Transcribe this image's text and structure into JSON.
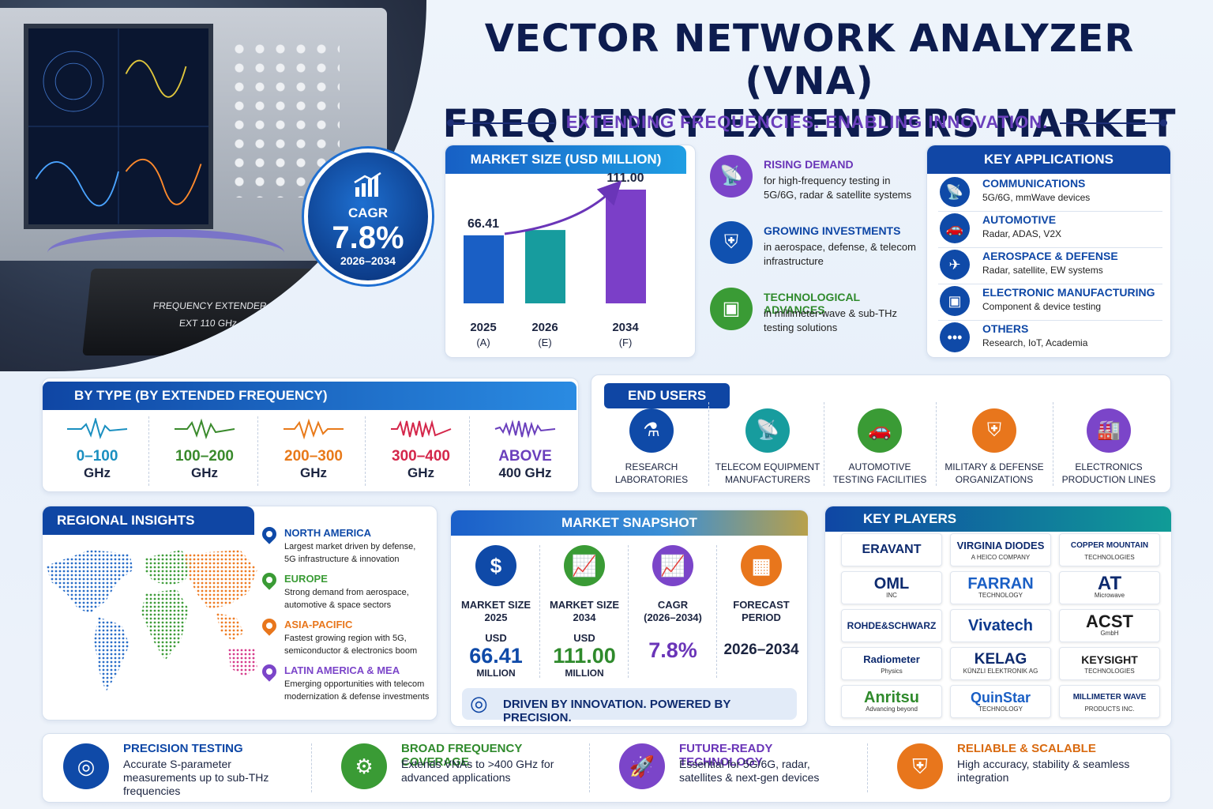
{
  "title_line1": "VECTOR NETWORK ANALYZER (VNA)",
  "title_line2": "FREQUENCY EXTENDERS MARKET",
  "subtitle": "EXTENDING FREQUENCIES. ENABLING INNOVATION.",
  "hero": {
    "extender_label1": "FREQUENCY EXTENDER",
    "extender_label2": "EXT 110 GHz"
  },
  "cagr_badge": {
    "label": "CAGR",
    "value": "7.8%",
    "period": "2026–2034"
  },
  "market_size": {
    "heading": "MARKET SIZE (USD MILLION)",
    "colors": [
      "#1a5fc5",
      "#179c9e",
      "#7b3fc8"
    ]
  },
  "chart_data": {
    "type": "bar",
    "title": "MARKET SIZE (USD MILLION)",
    "categories": [
      "2025",
      "2026",
      "2034"
    ],
    "category_notes": [
      "(A)",
      "(E)",
      "(F)"
    ],
    "values": [
      66.41,
      null,
      111.0
    ],
    "data_labels": [
      "66.41",
      "",
      "111.00"
    ],
    "estimated_values": [
      66.41,
      71.6,
      111.0
    ]
  },
  "drivers": [
    {
      "title": "RISING DEMAND",
      "desc": "for high-frequency testing in 5G/6G, radar & satellite systems",
      "icon": "antenna-icon",
      "color": "#7b45c9",
      "title_color": "#6a35b8"
    },
    {
      "title": "GROWING INVESTMENTS",
      "desc": "in aerospace, defense, & telecom infrastructure",
      "icon": "shield-icon",
      "color": "#1051b0",
      "title_color": "#0e47a6"
    },
    {
      "title": "TECHNOLOGICAL ADVANCES",
      "desc": "in millimeter-wave & sub-THz testing solutions",
      "icon": "chip-icon",
      "color": "#3a9b35",
      "title_color": "#2f8a2c"
    }
  ],
  "key_apps": {
    "heading": "KEY APPLICATIONS",
    "items": [
      {
        "title": "COMMUNICATIONS",
        "desc": "5G/6G, mmWave devices",
        "icon": "tower-icon"
      },
      {
        "title": "AUTOMOTIVE",
        "desc": "Radar, ADAS, V2X",
        "icon": "car-icon"
      },
      {
        "title": "AEROSPACE & DEFENSE",
        "desc": "Radar, satellite, EW systems",
        "icon": "plane-icon"
      },
      {
        "title": "ELECTRONIC MANUFACTURING",
        "desc": "Component & device testing",
        "icon": "chip-icon"
      },
      {
        "title": "OTHERS",
        "desc": "Research, IoT, Academia",
        "icon": "dots-icon"
      }
    ]
  },
  "by_type": {
    "heading": "BY TYPE (BY EXTENDED FREQUENCY)",
    "items": [
      {
        "r1": "0–100",
        "r2": "GHz",
        "color": "#1a8fc0"
      },
      {
        "r1": "100–200",
        "r2": "GHz",
        "color": "#3a8a2c"
      },
      {
        "r1": "200–300",
        "r2": "GHz",
        "color": "#e87a1a"
      },
      {
        "r1": "300–400",
        "r2": "GHz",
        "color": "#d4264a"
      },
      {
        "r1": "ABOVE",
        "r2": "400 GHz",
        "color": "#6a3fbc"
      }
    ]
  },
  "end_users": {
    "heading": "END USERS",
    "items": [
      {
        "l1": "RESEARCH",
        "l2": "LABORATORIES",
        "icon": "flask-icon",
        "color": "#0f4aa8"
      },
      {
        "l1": "TELECOM EQUIPMENT",
        "l2": "MANUFACTURERS",
        "icon": "tower-icon",
        "color": "#179c9e"
      },
      {
        "l1": "AUTOMOTIVE",
        "l2": "TESTING FACILITIES",
        "icon": "car-icon",
        "color": "#3a9b35"
      },
      {
        "l1": "MILITARY & DEFENSE",
        "l2": "ORGANIZATIONS",
        "icon": "shield-icon",
        "color": "#e8761c"
      },
      {
        "l1": "ELECTRONICS",
        "l2": "PRODUCTION LINES",
        "icon": "factory-icon",
        "color": "#7b45c9"
      }
    ]
  },
  "regional": {
    "heading": "REGIONAL INSIGHTS",
    "items": [
      {
        "title": "NORTH AMERICA",
        "desc1": "Largest market driven by defense,",
        "desc2": "5G infrastructure & innovation",
        "color": "#0f4aa8"
      },
      {
        "title": "EUROPE",
        "desc1": "Strong demand from aerospace,",
        "desc2": "automotive & space sectors",
        "color": "#3a9b35"
      },
      {
        "title": "ASIA-PACIFIC",
        "desc1": "Fastest growing region with 5G,",
        "desc2": "semiconductor & electronics boom",
        "color": "#e8761c"
      },
      {
        "title": "LATIN AMERICA & MEA",
        "desc1": "Emerging opportunities with telecom",
        "desc2": "modernization & defense investments",
        "color": "#7b45c9"
      }
    ]
  },
  "snapshot": {
    "heading": "MARKET SNAPSHOT",
    "items": [
      {
        "l1": "MARKET SIZE",
        "l2": "2025",
        "unit": "USD",
        "value": "66.41",
        "sub": "MILLION",
        "icon": "dollar-icon",
        "color": "#0f4aa8",
        "vcolor": "#0f4aa8"
      },
      {
        "l1": "MARKET SIZE",
        "l2": "2034",
        "unit": "USD",
        "value": "111.00",
        "sub": "MILLION",
        "icon": "chart-icon",
        "color": "#3a9b35",
        "vcolor": "#2f8a2c"
      },
      {
        "l1": "CAGR",
        "l2": "(2026–2034)",
        "unit": "",
        "value": "7.8%",
        "sub": "",
        "icon": "chart-icon",
        "color": "#7b45c9",
        "vcolor": "#6a35b8"
      },
      {
        "l1": "FORECAST",
        "l2": "PERIOD",
        "unit": "",
        "value": "2026–2034",
        "sub": "",
        "icon": "calendar-icon",
        "color": "#e8761c",
        "vcolor": "#1b2440"
      }
    ],
    "tagline": "DRIVEN BY INNOVATION. POWERED BY PRECISION."
  },
  "key_players": {
    "heading": "KEY PLAYERS",
    "items": [
      {
        "name": "ERAVANT",
        "sub": "",
        "color": "#0d2a6e",
        "size": 16
      },
      {
        "name": "VIRGINIA DIODES",
        "sub": "A HEICO COMPANY",
        "color": "#0d2a6e",
        "size": 13
      },
      {
        "name": "COPPER MOUNTAIN",
        "sub": "TECHNOLOGIES",
        "color": "#0d2a6e",
        "size": 10
      },
      {
        "name": "OML",
        "sub": "INC",
        "color": "#0d2a6e",
        "size": 20
      },
      {
        "name": "FARRAN",
        "sub": "TECHNOLOGY",
        "color": "#1a5fc5",
        "size": 20
      },
      {
        "name": "AT",
        "sub": "Microwave",
        "color": "#0d2a6e",
        "size": 24
      },
      {
        "name": "ROHDE&SCHWARZ",
        "sub": "",
        "color": "#0d2a6e",
        "size": 12
      },
      {
        "name": "Vivatech",
        "sub": "",
        "color": "#0d3a8e",
        "size": 20
      },
      {
        "name": "ACST",
        "sub": "GmbH",
        "color": "#1b1b1b",
        "size": 22
      },
      {
        "name": "Radiometer",
        "sub": "Physics",
        "color": "#0d2a6e",
        "size": 13
      },
      {
        "name": "KELAG",
        "sub": "KÜNZLI ELEKTRONIK AG",
        "color": "#0d2a6e",
        "size": 19
      },
      {
        "name": "KEYSIGHT",
        "sub": "TECHNOLOGIES",
        "color": "#1b1b1b",
        "size": 14
      },
      {
        "name": "Anritsu",
        "sub": "Advancing beyond",
        "color": "#2f8a2c",
        "size": 20
      },
      {
        "name": "QuinStar",
        "sub": "TECHNOLOGY",
        "color": "#1a5fc5",
        "size": 18
      },
      {
        "name": "MILLIMETER WAVE",
        "sub": "PRODUCTS INC.",
        "color": "#0d2a6e",
        "size": 10
      }
    ]
  },
  "features": [
    {
      "title": "PRECISION TESTING",
      "desc": "Accurate S-parameter measurements up to sub-THz frequencies",
      "icon": "target-icon",
      "color": "#0f4aa8",
      "tcolor": "#0e47a6"
    },
    {
      "title": "BROAD FREQUENCY COVERAGE",
      "desc": "Extends VNAs to >400 GHz for advanced applications",
      "icon": "gear-icon",
      "color": "#3a9b35",
      "tcolor": "#2f8a2c"
    },
    {
      "title": "FUTURE-READY TECHNOLOGY",
      "desc": "Essential for 5G/6G, radar, satellites & next-gen devices",
      "icon": "rocket-icon",
      "color": "#7b45c9",
      "tcolor": "#6a35b8"
    },
    {
      "title": "RELIABLE & SCALABLE",
      "desc": "High accuracy, stability & seamless integration",
      "icon": "shield-icon",
      "color": "#e8761c",
      "tcolor": "#d96a10"
    }
  ]
}
